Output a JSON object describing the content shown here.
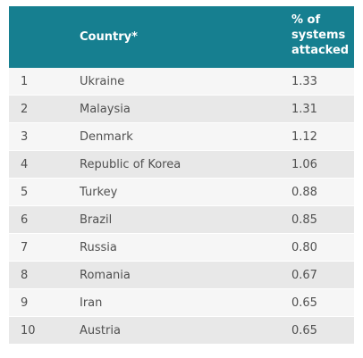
{
  "chart_data": {
    "type": "table",
    "columns": [
      "",
      "Country*",
      "% of\nsystems\nattacked"
    ],
    "rows": [
      {
        "rank": "1",
        "country": "Ukraine",
        "value": "1.33"
      },
      {
        "rank": "2",
        "country": "Malaysia",
        "value": "1.31"
      },
      {
        "rank": "3",
        "country": "Denmark",
        "value": "1.12"
      },
      {
        "rank": "4",
        "country": "Republic of Korea",
        "value": "1.06"
      },
      {
        "rank": "5",
        "country": "Turkey",
        "value": "0.88"
      },
      {
        "rank": "6",
        "country": "Brazil",
        "value": "0.85"
      },
      {
        "rank": "7",
        "country": "Russia",
        "value": "0.80"
      },
      {
        "rank": "8",
        "country": "Romania",
        "value": "0.67"
      },
      {
        "rank": "9",
        "country": "Iran",
        "value": "0.65"
      },
      {
        "rank": "10",
        "country": "Austria",
        "value": "0.65"
      }
    ]
  },
  "colors": {
    "header_bg": "#167f90",
    "header_text": "#ffffff",
    "row_odd": "#f6f6f6",
    "row_even": "#e8e8e8",
    "body_text": "#505050"
  }
}
